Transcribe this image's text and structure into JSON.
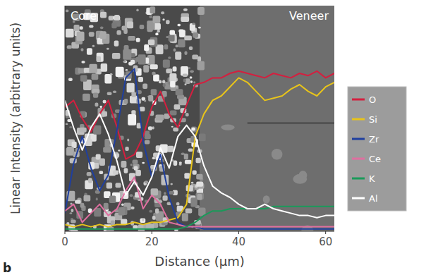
{
  "chart_data": {
    "type": "line",
    "x_label": "Distance (µm)",
    "y_label": "Linear Intensity (arbitrary units)",
    "annotations": [
      "Core",
      "Veneer",
      "b"
    ],
    "x": [
      0,
      2,
      4,
      6,
      8,
      10,
      12,
      14,
      16,
      18,
      20,
      22,
      24,
      26,
      28,
      30,
      32,
      34,
      36,
      38,
      40,
      42,
      44,
      46,
      48,
      50,
      52,
      54,
      56,
      58,
      60,
      62
    ],
    "xlim": [
      0,
      62
    ],
    "xticks": [
      0,
      20,
      40,
      60
    ],
    "ylim": [
      0,
      100
    ],
    "tick_labels": "x",
    "grid": false,
    "legend": "right",
    "series": [
      {
        "name": "O",
        "color": "#d41f3f",
        "values": [
          55,
          58,
          50,
          44,
          52,
          58,
          46,
          32,
          34,
          42,
          55,
          62,
          52,
          46,
          56,
          65,
          66,
          68,
          68,
          70,
          71,
          70,
          69,
          68,
          70,
          69,
          68,
          70,
          69,
          71,
          68,
          70
        ]
      },
      {
        "name": "Si",
        "color": "#e8c41a",
        "values": [
          3,
          2,
          3,
          2,
          3,
          2,
          3,
          3,
          4,
          3,
          4,
          4,
          5,
          6,
          12,
          42,
          52,
          58,
          60,
          64,
          68,
          66,
          62,
          58,
          59,
          60,
          63,
          65,
          62,
          60,
          64,
          66
        ]
      },
      {
        "name": "Zr",
        "color": "#1f3f9f",
        "values": [
          8,
          30,
          42,
          28,
          18,
          25,
          45,
          68,
          72,
          40,
          24,
          34,
          15,
          4,
          2,
          2,
          1,
          1,
          1,
          1,
          1,
          1,
          1,
          1,
          1,
          1,
          1,
          1,
          1,
          1,
          1,
          1
        ]
      },
      {
        "name": "Ce",
        "color": "#e06fa0",
        "values": [
          9,
          12,
          4,
          8,
          12,
          7,
          10,
          18,
          24,
          10,
          16,
          12,
          4,
          3,
          2,
          2,
          2,
          2,
          2,
          2,
          2,
          2,
          2,
          2,
          2,
          2,
          2,
          2,
          2,
          2,
          2,
          2
        ]
      },
      {
        "name": "K",
        "color": "#1a9a5a",
        "values": [
          1,
          1,
          1,
          1,
          1,
          1,
          1,
          1,
          1,
          1,
          1,
          1,
          1,
          1,
          2,
          4,
          7,
          9,
          9,
          10,
          10,
          10,
          10,
          10,
          11,
          11,
          11,
          11,
          11,
          11,
          11,
          11
        ]
      },
      {
        "name": "Al",
        "color": "#ffffff",
        "values": [
          58,
          46,
          36,
          46,
          52,
          43,
          31,
          16,
          22,
          16,
          24,
          37,
          28,
          42,
          47,
          42,
          29,
          20,
          17,
          15,
          12,
          10,
          10,
          12,
          10,
          9,
          8,
          7,
          7,
          6,
          7,
          7
        ]
      }
    ]
  }
}
